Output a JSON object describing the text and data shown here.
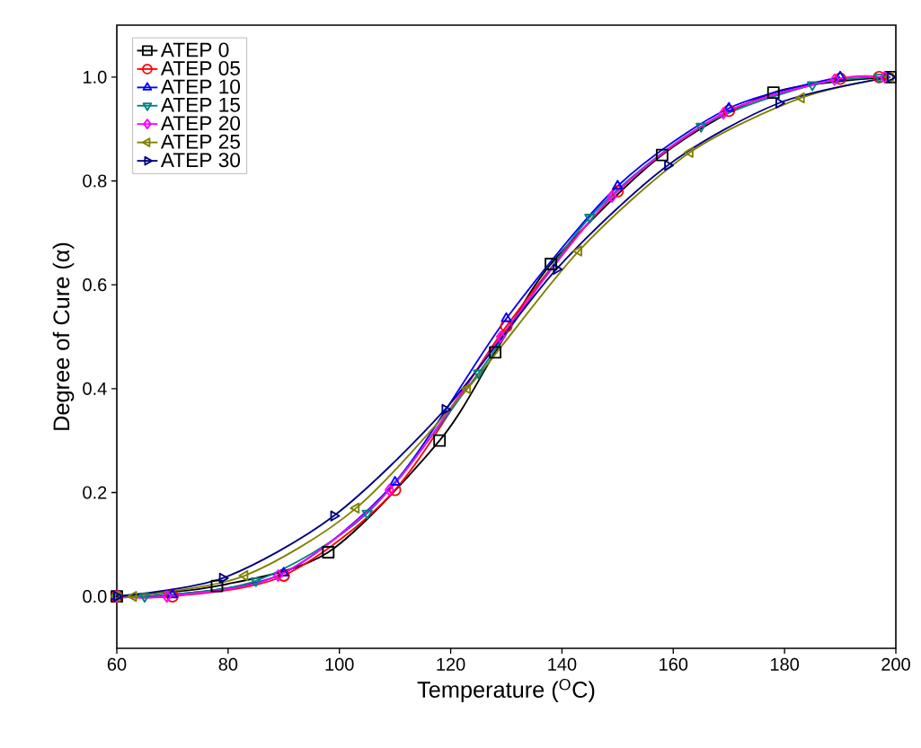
{
  "chart_data": {
    "type": "line",
    "xlabel": "Temperature ($^{O}$C)",
    "ylabel": "Degree of Cure (α)",
    "xlim": [
      60,
      200
    ],
    "ylim": [
      -0.1,
      1.1
    ],
    "xticks": [
      60,
      80,
      100,
      120,
      140,
      160,
      180,
      200
    ],
    "yticks": [
      {
        "value": 0,
        "label": "0.0"
      },
      {
        "value": 0.2,
        "label": "0.2"
      },
      {
        "value": 0.4,
        "label": "0.4"
      },
      {
        "value": 0.6,
        "label": "0.6"
      },
      {
        "value": 0.8,
        "label": "0.8"
      },
      {
        "value": 1.0,
        "label": "1.0"
      }
    ],
    "grid": false,
    "legend": "top left",
    "line_style": "solid",
    "series": [
      {
        "name": "ATEP 0",
        "color": "#000000",
        "marker": "square",
        "x": [
          60,
          78,
          98,
          118,
          128,
          138,
          158,
          178,
          199
        ],
        "values": [
          0,
          0.02,
          0.085,
          0.3,
          0.47,
          0.64,
          0.85,
          0.97,
          1.0
        ]
      },
      {
        "name": "ATEP 05",
        "color": "#ff0000",
        "marker": "circle",
        "x": [
          60,
          70,
          90,
          110,
          130,
          150,
          170,
          190,
          197
        ],
        "values": [
          0,
          0,
          0.04,
          0.205,
          0.52,
          0.78,
          0.935,
          0.997,
          1.0
        ]
      },
      {
        "name": "ATEP 10",
        "color": "#0000ff",
        "marker": "triangle",
        "x": [
          60,
          70,
          90,
          110,
          130,
          150,
          170,
          190
        ],
        "values": [
          0,
          0.003,
          0.045,
          0.22,
          0.535,
          0.79,
          0.94,
          1.0
        ]
      },
      {
        "name": "ATEP 15",
        "color": "#008080",
        "marker": "triangle-down",
        "x": [
          60,
          65,
          85,
          105,
          125,
          145,
          165,
          185,
          197
        ],
        "values": [
          0,
          0,
          0.03,
          0.16,
          0.43,
          0.73,
          0.905,
          0.985,
          1.0
        ]
      },
      {
        "name": "ATEP 20",
        "color": "#ff00ff",
        "marker": "diamond",
        "x": [
          60,
          69,
          89,
          109,
          129,
          149,
          169,
          189,
          198
        ],
        "values": [
          0,
          0,
          0.04,
          0.205,
          0.5,
          0.77,
          0.93,
          0.995,
          1.0
        ]
      },
      {
        "name": "ATEP 25",
        "color": "#808000",
        "marker": "triangle-left",
        "x": [
          60,
          63,
          83,
          103,
          123,
          143,
          163,
          183,
          199
        ],
        "values": [
          0,
          0,
          0.04,
          0.17,
          0.4,
          0.665,
          0.855,
          0.96,
          1.0
        ]
      },
      {
        "name": "ATEP 30",
        "color": "#000080",
        "marker": "triangle-right",
        "x": [
          60,
          79,
          99,
          119,
          139,
          159,
          179,
          199
        ],
        "values": [
          0,
          0.035,
          0.155,
          0.36,
          0.63,
          0.83,
          0.95,
          1.0
        ]
      }
    ]
  }
}
